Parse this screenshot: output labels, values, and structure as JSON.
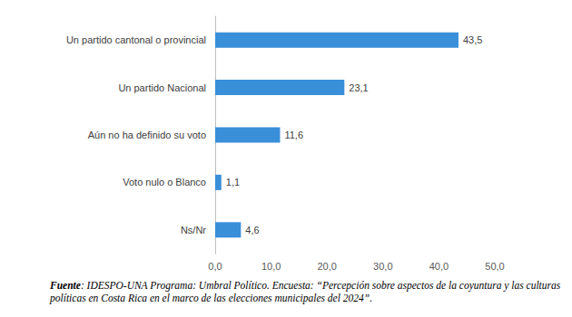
{
  "chart_data": {
    "type": "bar",
    "orientation": "horizontal",
    "categories": [
      "Un partido cantonal o provincial",
      "Un partido Nacional",
      "Aún no ha definido su voto",
      "Voto nulo o Blanco",
      "Ns/Nr"
    ],
    "values": [
      43.5,
      23.1,
      11.6,
      1.1,
      4.6
    ],
    "value_labels": [
      "43,5",
      "23,1",
      "11,6",
      "1,1",
      "4,6"
    ],
    "color": "#3a8fd9",
    "xlim": [
      0,
      50
    ],
    "xticks": [
      {
        "value": 0,
        "label": "0,0"
      },
      {
        "value": 10,
        "label": "10,0"
      },
      {
        "value": 20,
        "label": "20,0"
      },
      {
        "value": 30,
        "label": "30,0"
      },
      {
        "value": 40,
        "label": "40,0"
      },
      {
        "value": 50,
        "label": "50,0"
      }
    ],
    "grid": false,
    "data_labels": true,
    "source": "Fuente: IDESPO-UNA Programa: Umbral Político. Encuesta: “Percepción sobre aspectos de la coyuntura y las culturas políticas en Costa Rica en el marco de las elecciones municipales del 2024”."
  }
}
